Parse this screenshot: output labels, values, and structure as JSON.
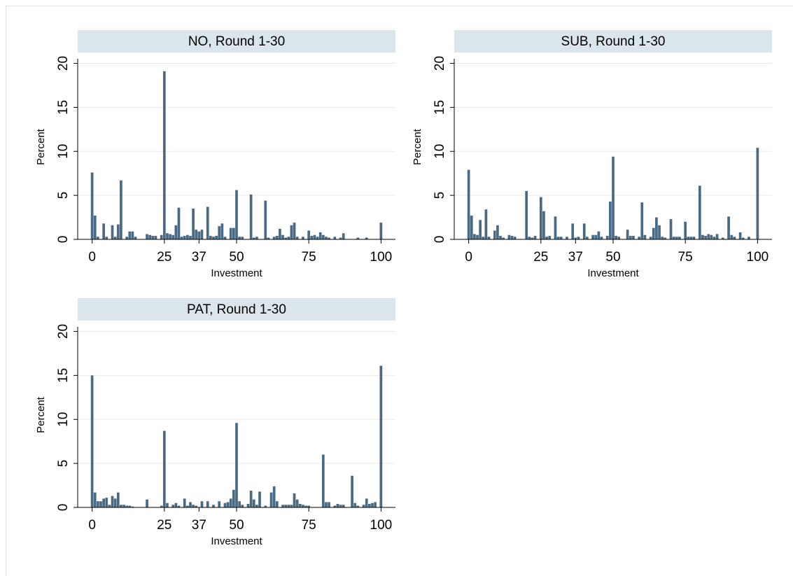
{
  "chart_data": [
    {
      "type": "bar",
      "title": "NO, Round 1-30",
      "xlabel": "Investment",
      "ylabel": "Percent",
      "color": "#4a6a84",
      "grid": true,
      "xlim": [
        -5,
        105
      ],
      "ylim": [
        0,
        20.2
      ],
      "xticks": [
        0,
        25,
        37,
        50,
        75,
        100
      ],
      "yticks": [
        0,
        5,
        10,
        15,
        20
      ],
      "x": [
        0,
        1,
        2,
        4,
        5,
        7,
        8,
        9,
        10,
        12,
        13,
        14,
        15,
        19,
        20,
        21,
        22,
        24,
        25,
        26,
        27,
        28,
        29,
        30,
        31,
        32,
        33,
        34,
        35,
        36,
        37,
        38,
        40,
        41,
        42,
        43,
        44,
        45,
        46,
        48,
        49,
        50,
        51,
        52,
        55,
        56,
        57,
        60,
        61,
        63,
        64,
        65,
        66,
        67,
        68,
        69,
        70,
        71,
        73,
        75,
        76,
        77,
        78,
        79,
        80,
        81,
        82,
        84,
        86,
        87,
        92,
        95,
        100
      ],
      "values": [
        7.6,
        2.7,
        0.3,
        1.8,
        0.3,
        1.6,
        0.3,
        1.7,
        6.7,
        0.3,
        0.9,
        0.9,
        0.3,
        0.6,
        0.5,
        0.4,
        0.4,
        0.5,
        19.1,
        0.7,
        0.6,
        0.5,
        1.6,
        3.6,
        0.3,
        0.4,
        0.5,
        0.4,
        3.5,
        1.1,
        0.9,
        1.1,
        3.7,
        0.4,
        0.3,
        0.4,
        1.5,
        1.8,
        0.3,
        1.3,
        1.3,
        5.6,
        0.3,
        0.3,
        5.1,
        0.2,
        0.3,
        4.4,
        0.2,
        0.3,
        0.4,
        1.2,
        0.5,
        0.2,
        0.3,
        1.6,
        1.9,
        0.3,
        0.3,
        1.0,
        0.4,
        0.5,
        0.3,
        0.8,
        0.5,
        0.3,
        0.2,
        0.3,
        0.2,
        0.7,
        0.2,
        0.2,
        1.9
      ]
    },
    {
      "type": "bar",
      "title": "SUB, Round 1-30",
      "xlabel": "Investment",
      "ylabel": "Percent",
      "color": "#4a6a84",
      "grid": true,
      "xlim": [
        -5,
        105
      ],
      "ylim": [
        0,
        20.2
      ],
      "xticks": [
        0,
        25,
        37,
        50,
        75,
        100
      ],
      "yticks": [
        0,
        5,
        10,
        15,
        20
      ],
      "x": [
        0,
        1,
        2,
        3,
        4,
        5,
        6,
        7,
        9,
        10,
        11,
        12,
        14,
        15,
        16,
        20,
        21,
        22,
        23,
        25,
        26,
        27,
        28,
        30,
        31,
        32,
        34,
        36,
        37,
        38,
        40,
        41,
        43,
        44,
        45,
        46,
        48,
        49,
        50,
        51,
        52,
        55,
        56,
        57,
        59,
        60,
        61,
        63,
        64,
        65,
        66,
        67,
        68,
        70,
        71,
        72,
        73,
        75,
        76,
        77,
        78,
        80,
        81,
        82,
        83,
        84,
        85,
        86,
        88,
        90,
        91,
        92,
        94,
        95,
        97,
        100
      ],
      "values": [
        7.9,
        2.7,
        0.6,
        0.5,
        2.2,
        0.3,
        3.4,
        0.3,
        1.0,
        1.6,
        0.4,
        0.2,
        0.5,
        0.4,
        0.3,
        5.5,
        0.3,
        0.2,
        0.4,
        4.8,
        3.2,
        0.3,
        0.4,
        2.6,
        0.3,
        0.3,
        0.3,
        1.8,
        0.2,
        0.3,
        1.8,
        0.3,
        0.5,
        0.5,
        0.9,
        0.3,
        0.4,
        4.3,
        9.4,
        0.4,
        0.3,
        1.1,
        0.4,
        0.4,
        0.3,
        4.2,
        0.5,
        0.3,
        1.3,
        2.5,
        1.6,
        0.3,
        0.2,
        2.3,
        0.3,
        0.3,
        0.3,
        2.0,
        0.3,
        0.3,
        0.3,
        6.1,
        0.5,
        0.4,
        0.6,
        0.5,
        0.3,
        0.6,
        0.2,
        2.6,
        0.5,
        0.3,
        0.8,
        0.2,
        0.3,
        10.4
      ]
    },
    {
      "type": "bar",
      "title": "PAT, Round 1-30",
      "xlabel": "Investment",
      "ylabel": "Percent",
      "color": "#4a6a84",
      "grid": true,
      "xlim": [
        -5,
        105
      ],
      "ylim": [
        0,
        20.2
      ],
      "xticks": [
        0,
        25,
        37,
        50,
        75,
        100
      ],
      "yticks": [
        0,
        5,
        10,
        15,
        20
      ],
      "x": [
        0,
        1,
        2,
        3,
        4,
        5,
        6,
        7,
        8,
        9,
        10,
        11,
        12,
        13,
        14,
        19,
        24,
        25,
        26,
        28,
        29,
        30,
        32,
        33,
        34,
        35,
        36,
        38,
        40,
        42,
        44,
        46,
        47,
        48,
        49,
        50,
        51,
        52,
        54,
        55,
        56,
        57,
        58,
        60,
        62,
        63,
        64,
        66,
        67,
        68,
        69,
        70,
        71,
        72,
        73,
        74,
        75,
        80,
        81,
        82,
        84,
        85,
        86,
        87,
        90,
        91,
        92,
        94,
        95,
        96,
        97,
        98,
        100
      ],
      "values": [
        15.0,
        1.7,
        0.7,
        0.7,
        1.0,
        1.1,
        0.3,
        1.3,
        1.0,
        1.7,
        0.3,
        0.3,
        0.2,
        0.2,
        0.1,
        0.9,
        0.2,
        8.7,
        0.5,
        0.3,
        0.5,
        0.2,
        1.0,
        0.2,
        0.6,
        0.3,
        0.2,
        0.7,
        0.7,
        0.3,
        0.7,
        0.5,
        0.6,
        1.0,
        2.0,
        9.6,
        0.7,
        0.3,
        0.4,
        1.9,
        0.9,
        0.3,
        1.8,
        0.2,
        1.7,
        2.4,
        0.7,
        0.3,
        0.3,
        0.3,
        0.3,
        1.6,
        0.9,
        0.4,
        0.3,
        0.2,
        0.2,
        6.0,
        0.6,
        0.6,
        0.2,
        0.4,
        0.3,
        0.3,
        3.6,
        0.5,
        0.2,
        0.3,
        1.0,
        0.4,
        0.5,
        0.6,
        16.1
      ]
    }
  ]
}
